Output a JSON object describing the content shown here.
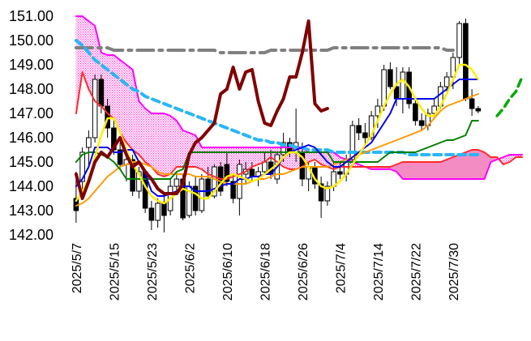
{
  "chart_data": {
    "type": "line",
    "title": "",
    "xlabel": "",
    "ylabel": "",
    "ylim": [
      142.0,
      151.0
    ],
    "grid": false,
    "legend": "none",
    "y_ticks": [
      "142.00",
      "143.00",
      "144.00",
      "145.00",
      "146.00",
      "147.00",
      "148.00",
      "149.00",
      "150.00",
      "151.00"
    ],
    "x_ticks": [
      {
        "i": 0,
        "label": "2025/5/7"
      },
      {
        "i": 6,
        "label": "2025/5/15"
      },
      {
        "i": 12,
        "label": "2025/5/23"
      },
      {
        "i": 18,
        "label": "2025/6/2"
      },
      {
        "i": 24,
        "label": "2025/6/10"
      },
      {
        "i": 30,
        "label": "2025/6/18"
      },
      {
        "i": 36,
        "label": "2025/6/26"
      },
      {
        "i": 42,
        "label": "2025/7/4"
      },
      {
        "i": 48,
        "label": "2025/7/14"
      },
      {
        "i": 54,
        "label": "2025/7/22"
      },
      {
        "i": 60,
        "label": "2025/7/30"
      }
    ],
    "n_slots": 72,
    "candles": [
      [
        143.5,
        144.6,
        142.5,
        143.0
      ],
      [
        144.2,
        145.6,
        143.8,
        145.4
      ],
      [
        145.6,
        146.3,
        144.8,
        146.0
      ],
      [
        146.0,
        148.6,
        145.8,
        148.4
      ],
      [
        148.4,
        148.6,
        147.0,
        147.3
      ],
      [
        147.3,
        147.6,
        146.0,
        146.4
      ],
      [
        146.4,
        146.8,
        145.3,
        145.5
      ],
      [
        145.5,
        145.8,
        144.7,
        144.9
      ],
      [
        144.9,
        145.4,
        144.2,
        145.1
      ],
      [
        145.1,
        145.3,
        143.6,
        143.8
      ],
      [
        143.8,
        144.8,
        143.5,
        144.6
      ],
      [
        144.6,
        144.7,
        142.9,
        143.1
      ],
      [
        143.1,
        143.4,
        142.2,
        142.6
      ],
      [
        142.6,
        143.5,
        142.3,
        143.3
      ],
      [
        143.3,
        143.6,
        142.1,
        142.8
      ],
      [
        143.0,
        144.3,
        142.8,
        144.0
      ],
      [
        144.0,
        144.6,
        143.8,
        144.3
      ],
      [
        144.3,
        144.5,
        142.6,
        142.7
      ],
      [
        142.8,
        144.2,
        142.7,
        144.0
      ],
      [
        144.0,
        144.4,
        142.8,
        143.0
      ],
      [
        143.0,
        144.5,
        142.9,
        144.3
      ],
      [
        144.3,
        144.8,
        143.5,
        143.6
      ],
      [
        143.6,
        144.9,
        143.5,
        144.8
      ],
      [
        144.8,
        145.0,
        143.6,
        143.8
      ],
      [
        144.9,
        145.4,
        144.0,
        144.2
      ],
      [
        144.2,
        144.5,
        143.3,
        143.5
      ],
      [
        143.5,
        145.1,
        142.8,
        144.9
      ],
      [
        144.5,
        145.0,
        144.1,
        144.7
      ],
      [
        144.7,
        145.0,
        144.2,
        144.4
      ],
      [
        144.4,
        144.8,
        144.0,
        144.6
      ],
      [
        144.6,
        145.4,
        144.5,
        145.0
      ],
      [
        145.0,
        145.5,
        144.3,
        144.5
      ],
      [
        144.3,
        145.4,
        144.1,
        145.3
      ],
      [
        145.3,
        146.2,
        145.0,
        145.8
      ],
      [
        145.8,
        146.0,
        145.2,
        145.4
      ],
      [
        145.4,
        147.2,
        145.0,
        145.8
      ],
      [
        145.4,
        145.8,
        144.0,
        144.3
      ],
      [
        144.3,
        145.0,
        143.8,
        144.8
      ],
      [
        144.8,
        145.0,
        143.9,
        144.1
      ],
      [
        144.1,
        144.4,
        142.7,
        143.4
      ],
      [
        143.4,
        144.2,
        143.2,
        144.0
      ],
      [
        144.0,
        145.0,
        143.8,
        144.6
      ],
      [
        144.6,
        145.0,
        144.3,
        144.5
      ],
      [
        144.5,
        145.3,
        144.2,
        145.1
      ],
      [
        145.1,
        146.7,
        145.0,
        146.5
      ],
      [
        146.5,
        146.8,
        145.9,
        146.2
      ],
      [
        146.2,
        146.6,
        145.7,
        146.0
      ],
      [
        146.0,
        147.1,
        145.9,
        146.9
      ],
      [
        146.9,
        147.6,
        146.4,
        147.3
      ],
      [
        147.3,
        149.0,
        147.1,
        148.8
      ],
      [
        148.8,
        149.1,
        148.0,
        148.1
      ],
      [
        148.1,
        148.9,
        147.3,
        147.6
      ],
      [
        147.6,
        148.9,
        147.0,
        148.7
      ],
      [
        148.7,
        148.9,
        147.2,
        147.4
      ],
      [
        147.4,
        147.6,
        146.5,
        146.7
      ],
      [
        146.7,
        147.0,
        146.3,
        146.5
      ],
      [
        146.5,
        147.2,
        146.3,
        147.0
      ],
      [
        147.0,
        147.6,
        146.8,
        147.3
      ],
      [
        147.3,
        148.3,
        147.2,
        148.1
      ],
      [
        148.1,
        148.7,
        147.9,
        148.5
      ],
      [
        148.5,
        149.5,
        148.0,
        149.3
      ],
      [
        149.3,
        150.8,
        149.0,
        150.7
      ],
      [
        150.7,
        150.9,
        147.5,
        147.6
      ],
      [
        147.6,
        148.0,
        146.9,
        147.2
      ],
      [
        147.2,
        147.3,
        147.0,
        147.1
      ]
    ],
    "series": [
      {
        "role": "senkou_a",
        "color": "#ff2a2a",
        "dash": "solid",
        "values": [
          147.0,
          148.7,
          148.0,
          147.5,
          147.3,
          147.0,
          146.8,
          146.2,
          145.8,
          145.5,
          145.3,
          145.0,
          144.8,
          144.5,
          144.4,
          144.5,
          144.8,
          144.8,
          144.8,
          144.8,
          144.7,
          144.5,
          144.4,
          144.3,
          144.3,
          144.4,
          144.5,
          144.6,
          144.8,
          144.9,
          145.0,
          145.2,
          145.0,
          144.8,
          144.7,
          144.7,
          144.8,
          145.0,
          145.1,
          144.9,
          144.8,
          144.7,
          144.8,
          144.8,
          144.8,
          144.8,
          144.8,
          144.8,
          144.8,
          144.8,
          144.8,
          144.9,
          145.0,
          145.0,
          145.0,
          145.0,
          145.0,
          145.0,
          145.0,
          145.1,
          145.2,
          145.3,
          145.4,
          145.5,
          145.5,
          145.4,
          145.2,
          145.2,
          144.9,
          145.0,
          145.2,
          145.2
        ],
        "start": 0
      },
      {
        "role": "senkou_b",
        "color": "#ff00ff",
        "dash": "solid",
        "values": [
          151.0,
          151.0,
          150.8,
          150.6,
          149.5,
          149.4,
          149.4,
          149.2,
          149.0,
          148.8,
          147.5,
          147.2,
          147.0,
          147.0,
          147.0,
          146.9,
          146.7,
          146.3,
          146.2,
          146.1,
          145.6,
          145.6,
          145.6,
          145.6,
          145.6,
          145.6,
          145.6,
          145.6,
          145.6,
          145.6,
          145.6,
          145.6,
          145.6,
          145.6,
          145.6,
          145.6,
          145.6,
          145.4,
          145.4,
          145.4,
          145.4,
          145.4,
          145.2,
          145.1,
          145.0,
          144.9,
          144.8,
          144.7,
          144.7,
          144.7,
          144.7,
          144.6,
          144.3,
          144.3,
          144.3,
          144.3,
          144.3,
          144.3,
          144.3,
          144.3,
          144.3,
          144.3,
          144.3,
          144.3,
          144.3,
          144.3,
          145.0,
          145.1,
          145.2,
          145.3,
          145.3,
          145.3
        ],
        "start": 0
      },
      {
        "role": "ma_75",
        "color": "#808080",
        "dash": "longdashdot",
        "values": [
          149.7,
          149.7,
          149.7,
          149.7,
          149.7,
          149.7,
          149.6,
          149.6,
          149.6,
          149.6,
          149.6,
          149.6,
          149.6,
          149.6,
          149.6,
          149.6,
          149.6,
          149.6,
          149.6,
          149.6,
          149.6,
          149.6,
          149.6,
          149.5,
          149.5,
          149.5,
          149.5,
          149.5,
          149.5,
          149.5,
          149.5,
          149.6,
          149.6,
          149.6,
          149.6,
          149.6,
          149.6,
          149.6,
          149.6,
          149.6,
          149.6,
          149.7,
          149.7,
          149.7,
          149.7,
          149.7,
          149.7,
          149.7,
          149.7,
          149.7,
          149.7,
          149.7,
          149.7,
          149.7,
          149.7,
          149.7,
          149.7,
          149.7,
          149.7,
          149.6,
          149.6
        ],
        "start": 0
      },
      {
        "role": "ma_200",
        "color": "#29b6f6",
        "dash": "dashed",
        "values": [
          150.0,
          149.8,
          149.5,
          149.2,
          149.0,
          148.8,
          148.6,
          148.4,
          148.2,
          148.0,
          147.9,
          147.7,
          147.6,
          147.5,
          147.4,
          147.3,
          147.2,
          147.1,
          147.0,
          146.9,
          146.8,
          146.7,
          146.6,
          146.5,
          146.4,
          146.3,
          146.2,
          146.1,
          146.0,
          145.9,
          145.9,
          145.8,
          145.8,
          145.7,
          145.7,
          145.6,
          145.6,
          145.5,
          145.5,
          145.5,
          145.5,
          145.4,
          145.4,
          145.4,
          145.4,
          145.4,
          145.4,
          145.4,
          145.4,
          145.4,
          145.4,
          145.4,
          145.4,
          145.3,
          145.3,
          145.3,
          145.3,
          145.3,
          145.3,
          145.3,
          145.3,
          145.3,
          145.3,
          145.3,
          145.3
        ],
        "start": 0
      },
      {
        "role": "ma_25",
        "color": "#ff9900",
        "dash": "solid",
        "values": [
          143.2,
          143.3,
          143.5,
          143.8,
          144.1,
          144.4,
          144.6,
          144.8,
          144.9,
          145.0,
          145.0,
          144.9,
          144.8,
          144.6,
          144.5,
          144.5,
          144.5,
          144.5,
          144.5,
          144.4,
          144.4,
          144.4,
          144.3,
          144.2,
          144.1,
          144.1,
          144.1,
          144.1,
          144.2,
          144.3,
          144.3,
          144.4,
          144.5,
          144.5,
          144.6,
          144.7,
          144.8,
          144.8,
          144.8,
          144.8,
          144.8,
          144.9,
          145.0,
          145.1,
          145.2,
          145.3,
          145.4,
          145.5,
          145.6,
          145.7,
          145.8,
          145.9,
          146.0,
          146.1,
          146.2,
          146.3,
          146.5,
          146.8,
          147.1,
          147.3,
          147.4,
          147.5,
          147.6,
          147.7,
          147.8
        ],
        "start": 0
      },
      {
        "role": "kijun",
        "color": "#008000",
        "dash": "solid",
        "values": [
          145.0,
          145.3,
          145.4,
          145.4,
          145.3,
          145.2,
          145.0,
          144.7,
          144.3,
          144.3,
          144.3,
          144.3,
          144.3,
          144.3,
          144.3,
          144.3,
          144.6,
          144.7,
          145.4,
          145.4,
          145.4,
          145.4,
          145.4,
          145.4,
          145.4,
          145.4,
          145.4,
          145.4,
          145.4,
          145.4,
          145.4,
          145.4,
          145.4,
          145.4,
          145.4,
          145.4,
          145.4,
          145.4,
          145.4,
          145.4,
          145.4,
          145.0,
          145.0,
          145.0,
          145.0,
          145.0,
          145.0,
          145.0,
          145.0,
          145.2,
          145.4,
          145.4,
          145.4,
          145.4,
          145.4,
          145.5,
          145.6,
          145.7,
          145.8,
          145.9,
          145.9,
          146.0,
          146.1,
          146.7,
          146.7
        ],
        "start": 0
      },
      {
        "role": "tenkan",
        "color": "#0000ee",
        "dash": "solid",
        "values": [
          144.0,
          144.3,
          144.8,
          145.6,
          145.6,
          145.6,
          145.4,
          145.4,
          145.5,
          145.5,
          145.0,
          144.5,
          143.8,
          143.6,
          143.6,
          143.7,
          143.8,
          144.0,
          144.0,
          143.8,
          143.8,
          143.8,
          143.9,
          144.0,
          144.1,
          144.1,
          144.3,
          144.3,
          144.4,
          144.4,
          144.5,
          144.5,
          144.8,
          145.2,
          145.4,
          145.5,
          145.6,
          145.7,
          145.6,
          145.3,
          145.0,
          144.8,
          144.8,
          145.0,
          145.2,
          145.4,
          145.6,
          145.8,
          146.2,
          146.6,
          147.0,
          147.6,
          147.6,
          147.6,
          147.6,
          147.6,
          147.6,
          147.6,
          147.8,
          148.0,
          148.2,
          148.4,
          148.4,
          148.4,
          148.4
        ],
        "start": 0
      },
      {
        "role": "ma_5",
        "color": "#ffee00",
        "dash": "solid",
        "values": [
          143.4,
          143.8,
          144.3,
          145.2,
          146.1,
          146.8,
          146.8,
          146.2,
          145.5,
          144.9,
          144.5,
          144.0,
          143.6,
          143.4,
          143.3,
          143.5,
          143.7,
          143.9,
          143.8,
          143.7,
          143.5,
          143.5,
          143.8,
          144.1,
          144.4,
          144.5,
          144.4,
          144.3,
          144.2,
          144.3,
          144.5,
          144.7,
          144.9,
          145.2,
          145.4,
          145.4,
          145.2,
          144.8,
          144.3,
          144.0,
          143.9,
          144.0,
          144.2,
          144.5,
          144.9,
          145.3,
          145.7,
          146.1,
          146.7,
          147.3,
          147.8,
          148.2,
          148.4,
          148.1,
          147.6,
          147.2,
          146.9,
          146.9,
          147.3,
          147.8,
          148.4,
          149.0,
          149.0,
          148.8,
          148.4
        ],
        "start": 0
      },
      {
        "role": "chikou",
        "color": "#800000",
        "dash": "solid",
        "values": [
          144.5,
          143.5,
          144.2,
          145.0,
          145.4,
          145.2,
          145.6,
          146.0,
          145.3,
          144.8,
          145.0,
          144.6,
          144.3,
          143.9,
          143.7,
          143.7,
          143.7,
          144.1,
          145.3,
          145.8,
          146.0,
          146.3,
          146.6,
          147.8,
          148.0,
          148.9,
          148.0,
          148.7,
          148.8,
          147.5,
          146.6,
          146.5,
          147.1,
          147.6,
          148.5,
          148.5,
          149.5,
          150.8,
          147.4,
          147.1,
          147.2
        ],
        "start": 0
      },
      {
        "role": "senkou_a_future",
        "color": "#00aa00",
        "dash": "dashed",
        "values": [
          146.9,
          147.2,
          147.6,
          147.9,
          148.5
        ],
        "start": 67
      }
    ]
  }
}
